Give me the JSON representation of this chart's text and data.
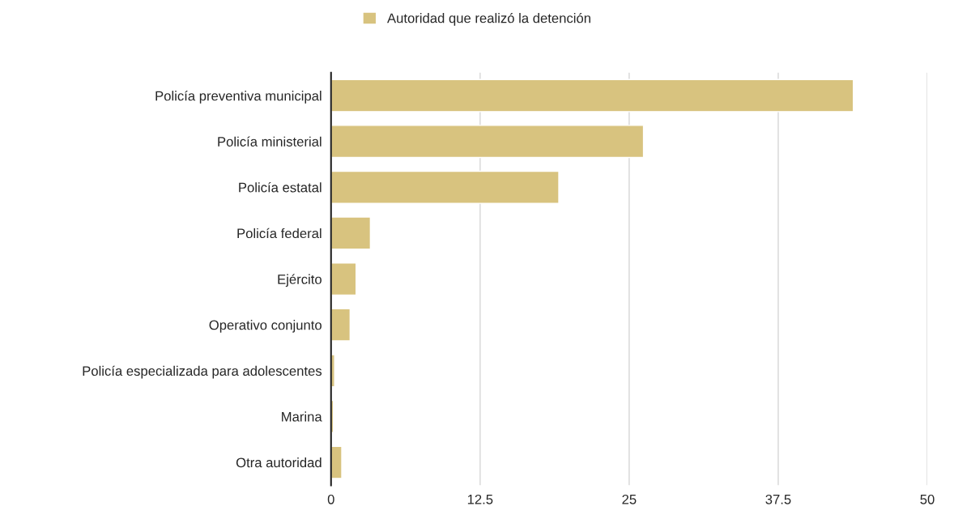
{
  "chart_data": {
    "type": "bar",
    "orientation": "horizontal",
    "categories": [
      "Policía preventiva municipal",
      "Policía ministerial",
      "Policía estatal",
      "Policía federal",
      "Ejército",
      "Operativo conjunto",
      "Policía especializada para adolescentes",
      "Marina",
      "Otra autoridad"
    ],
    "series": [
      {
        "name": "Autoridad que realizó la detención",
        "color": "#d8c37f",
        "values": [
          43.8,
          26.2,
          19.1,
          3.3,
          2.1,
          1.6,
          0.3,
          0.2,
          0.9
        ]
      }
    ],
    "xlim": [
      0,
      50
    ],
    "xticks": [
      0,
      12.5,
      25,
      37.5,
      50
    ],
    "grid": "x",
    "legend": "top"
  }
}
